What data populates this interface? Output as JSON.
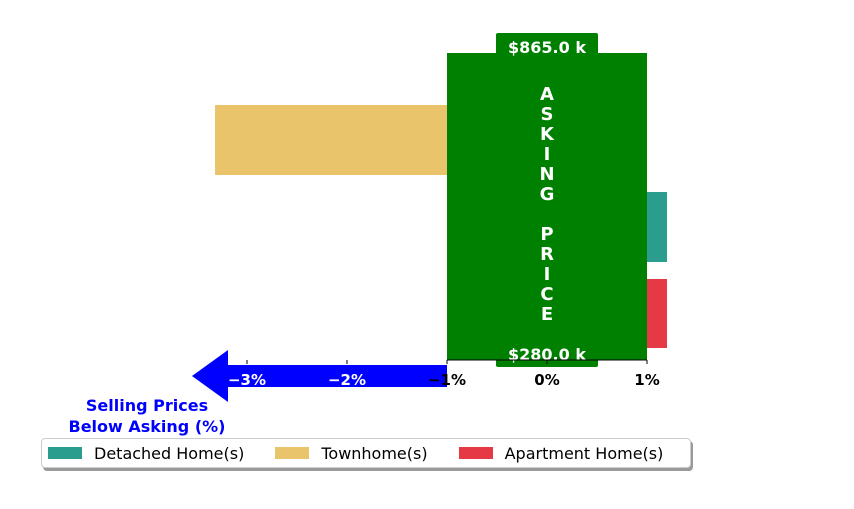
{
  "chart_data": {
    "type": "bar",
    "orientation": "horizontal",
    "series": [
      {
        "name": "Detached Home(s)",
        "value": 1.2,
        "color": "#2a9d8f"
      },
      {
        "name": "Townhome(s)",
        "value": -3.32,
        "color": "#e9c46a"
      },
      {
        "name": "Apartment Home(s)",
        "value": 1.2,
        "color": "#e63946"
      }
    ],
    "xlim": [
      -4,
      1.5
    ],
    "x_ticks": [
      {
        "value": -3,
        "label": "−3%"
      },
      {
        "value": -2,
        "label": "−2%"
      },
      {
        "value": -1,
        "label": "−1%"
      },
      {
        "value": 0,
        "label": "0%"
      },
      {
        "value": 1,
        "label": "1%"
      }
    ],
    "asking_price_band": {
      "range": [
        -1,
        1
      ],
      "color": "#008000",
      "label": "ASKING PRICE",
      "top_price": "$865.0 k",
      "bottom_price": "$280.0 k"
    },
    "below_asking_arrow": {
      "color": "#0000ff",
      "from": -1,
      "to": -3.55
    },
    "annotation": "Selling Prices\nBelow Asking (%)",
    "annotation_color": "#0000ff",
    "legend_position": "bottom-left"
  },
  "legend": [
    {
      "label": "Detached Home(s)",
      "color": "#2a9d8f"
    },
    {
      "label": "Townhome(s)",
      "color": "#e9c46a"
    },
    {
      "label": "Apartment Home(s)",
      "color": "#e63946"
    }
  ]
}
